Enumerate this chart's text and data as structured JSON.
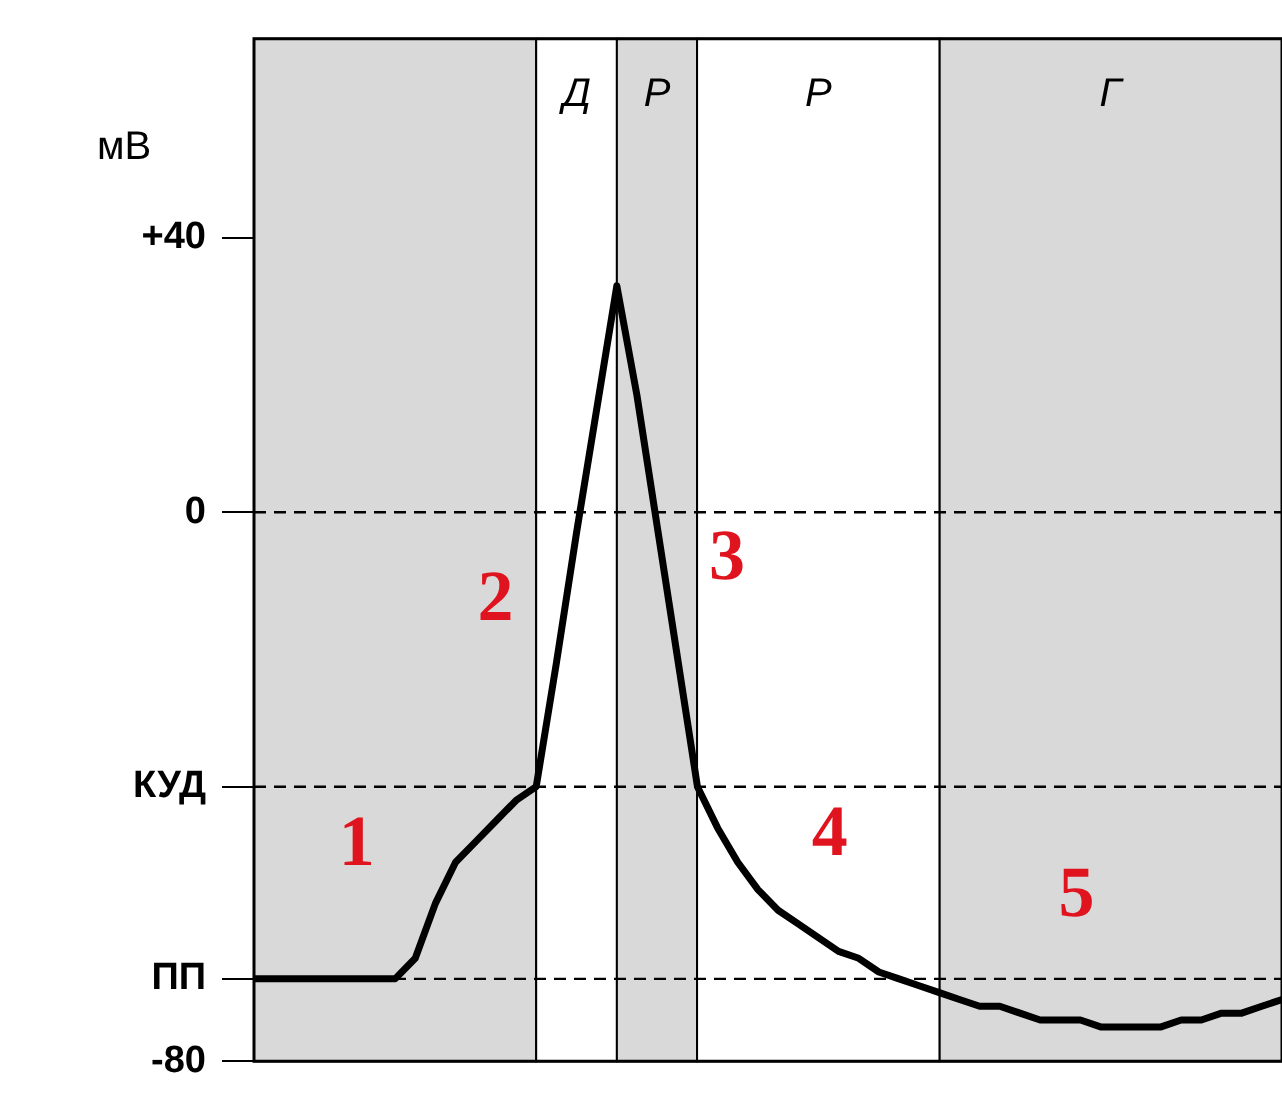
{
  "chart_data": {
    "type": "line",
    "ylabel": "мВ",
    "ylim": [
      -80,
      69
    ],
    "yticks": [
      {
        "value": 40,
        "label": "+40"
      },
      0,
      {
        "value": -40,
        "label": "КУД"
      },
      {
        "value": -68,
        "label": "ПП"
      },
      -80
    ],
    "tick_labels": "y",
    "legend": false,
    "marker": "none",
    "categories": [
      null,
      null,
      null,
      null,
      null,
      null,
      null,
      null,
      null,
      null,
      null,
      null,
      null,
      null,
      null,
      null,
      null,
      null,
      null,
      null,
      null,
      null,
      null,
      null,
      null,
      null,
      null,
      null,
      null,
      null,
      null,
      null,
      null,
      null,
      null,
      null,
      null,
      null,
      null,
      null,
      null,
      null,
      null,
      null,
      null,
      null,
      null,
      null,
      null,
      null,
      null,
      null
    ],
    "series": [
      {
        "color": "#000000",
        "values": [
          -68,
          -68,
          -68,
          -68,
          -68,
          -68,
          -68,
          -68,
          -65,
          -57,
          -51,
          -48,
          -45,
          -42,
          -40,
          -22,
          -3,
          15,
          33,
          17,
          -2,
          -21,
          -40,
          -46,
          -51,
          -55,
          -58,
          -60,
          -62,
          -64,
          -65,
          -67,
          -68,
          -69,
          -70,
          -71,
          -72,
          -72,
          -73,
          -74,
          -74,
          -74,
          -75,
          -75,
          -75,
          -75,
          -74,
          -74,
          -73,
          -73,
          -72,
          -71
        ]
      }
    ],
    "ref_lines": [
      {
        "axis": "y",
        "value": 0,
        "line_style": "dashed"
      },
      {
        "axis": "y",
        "value": -40,
        "line_style": "dashed"
      },
      {
        "axis": "y",
        "value": -68,
        "line_style": "dashed"
      }
    ],
    "annotations": [
      "Д",
      "Р",
      "Р",
      "Г",
      "1",
      "2",
      "3",
      "4",
      "5"
    ]
  }
}
